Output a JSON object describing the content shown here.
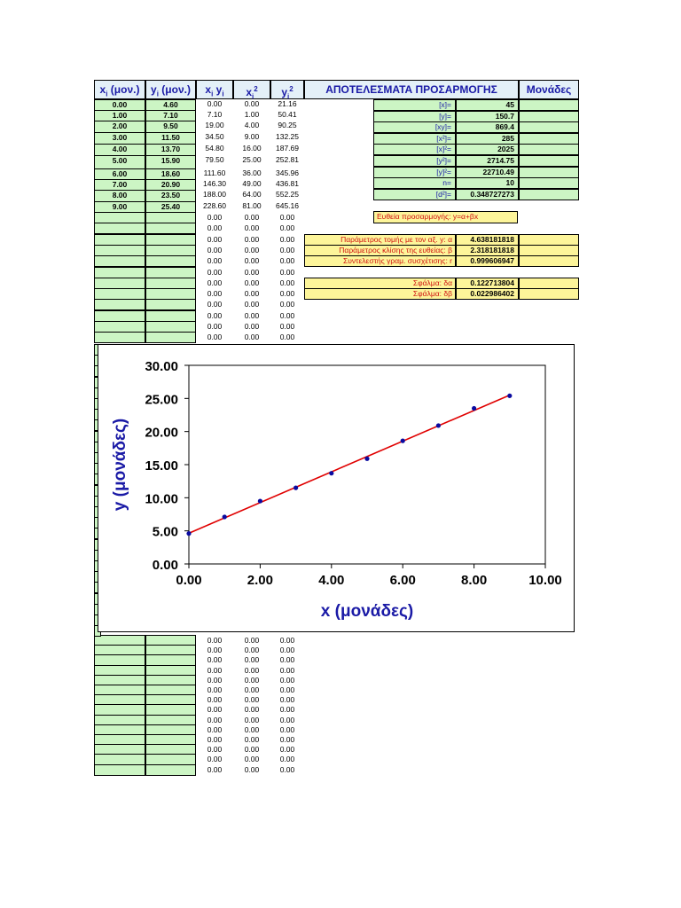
{
  "headers": {
    "xi": "x",
    "xi_sub": "i",
    "xi_unit": " (μον.)",
    "yi": "y",
    "yi_sub": "i",
    "yi_unit": " (μον.)",
    "xiyi_a": "x",
    "xiyi_a_sub": "i",
    "xiyi_b": " y",
    "xiyi_b_sub": "i",
    "xi2": "x",
    "xi2_sub": "i",
    "xi2_sup": "2",
    "yi2": "y",
    "yi2_sub": "i",
    "yi2_sup": "2",
    "results": "ΑΠΟΤΕΛΕΣΜΑΤΑ ΠΡΟΣΑΡΜΟΓΗΣ",
    "units": "Μονάδες"
  },
  "rows": [
    {
      "x": "0.00",
      "y": "4.60",
      "xy": "0.00",
      "x2": "0.00",
      "y2": "21.16"
    },
    {
      "x": "1.00",
      "y": "7.10",
      "xy": "7.10",
      "x2": "1.00",
      "y2": "50.41"
    },
    {
      "x": "2.00",
      "y": "9.50",
      "xy": "19.00",
      "x2": "4.00",
      "y2": "90.25"
    },
    {
      "x": "3.00",
      "y": "11.50",
      "xy": "34.50",
      "x2": "9.00",
      "y2": "132.25"
    },
    {
      "x": "4.00",
      "y": "13.70",
      "xy": "54.80",
      "x2": "16.00",
      "y2": "187.69"
    },
    {
      "x": "5.00",
      "y": "15.90",
      "xy": "79.50",
      "x2": "25.00",
      "y2": "252.81"
    },
    {
      "x": "6.00",
      "y": "18.60",
      "xy": "111.60",
      "x2": "36.00",
      "y2": "345.96"
    },
    {
      "x": "7.00",
      "y": "20.90",
      "xy": "146.30",
      "x2": "49.00",
      "y2": "436.81"
    },
    {
      "x": "8.00",
      "y": "23.50",
      "xy": "188.00",
      "x2": "64.00",
      "y2": "552.25"
    },
    {
      "x": "9.00",
      "y": "25.40",
      "xy": "228.60",
      "x2": "81.00",
      "y2": "645.16"
    }
  ],
  "zero": "0.00",
  "sums": [
    {
      "label": "[x]=",
      "value": "45"
    },
    {
      "label": "[y]=",
      "value": "150.7"
    },
    {
      "label": "[xy]=",
      "value": "869.4"
    },
    {
      "label": "[x²]=",
      "value": "285"
    },
    {
      "label": "[x]²=",
      "value": "2025"
    },
    {
      "label": "[y²]=",
      "value": "2714.75"
    },
    {
      "label": "[y]²=",
      "value": "22710.49"
    },
    {
      "label": "n=",
      "value": "10"
    },
    {
      "label": "[d²]=",
      "value": "0.348727273"
    }
  ],
  "fit_title": "Ευθεία προσαρμογής: y=α+βx",
  "params": [
    {
      "label": "Παράμετρος τομής με τον αξ. y: α",
      "value": "4.638181818"
    },
    {
      "label": "Παράμετρος κλίσης της ευθείας: β",
      "value": "2.318181818"
    },
    {
      "label": "Συντελεστής γραμ. συσχέτισης: r",
      "value": "0.999606947"
    }
  ],
  "errors": [
    {
      "label": "Σφάλμα: δα",
      "value": "0.122713804"
    },
    {
      "label": "Σφάλμα: δβ",
      "value": "0.022986402"
    }
  ],
  "chart_data": {
    "type": "scatter",
    "x": [
      0,
      1,
      2,
      3,
      4,
      5,
      6,
      7,
      8,
      9
    ],
    "y": [
      4.6,
      7.1,
      9.5,
      11.5,
      13.7,
      15.9,
      18.6,
      20.9,
      23.5,
      25.4
    ],
    "fit": {
      "intercept": 4.638181818,
      "slope": 2.318181818,
      "color": "#e00000"
    },
    "point_color": "#0a0aa0",
    "xlim": [
      0,
      10
    ],
    "ylim": [
      0,
      30
    ],
    "xticks": [
      "0.00",
      "2.00",
      "4.00",
      "6.00",
      "8.00",
      "10.00"
    ],
    "yticks": [
      "0.00",
      "5.00",
      "10.00",
      "15.00",
      "20.00",
      "25.00",
      "30.00"
    ],
    "xlabel": "x (μονάδες)",
    "ylabel": "y (μονάδες)",
    "label_color": "#1a1aa6",
    "grid": false
  }
}
